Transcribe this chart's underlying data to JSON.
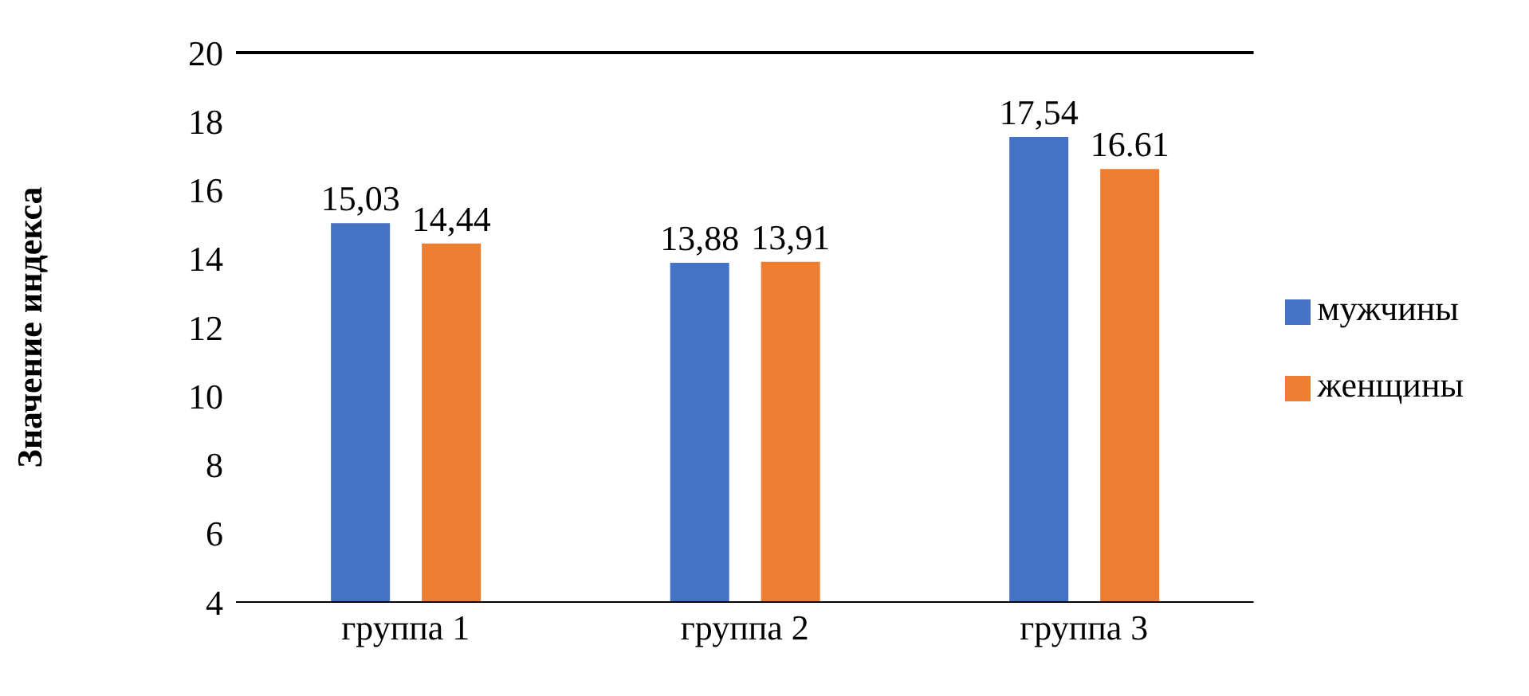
{
  "chart_data": {
    "type": "bar",
    "ylabel": "Значение индекса",
    "categories": [
      "группа 1",
      "группа 2",
      "группа 3"
    ],
    "series": [
      {
        "name": "мужчины",
        "color": "#4472c4",
        "values": [
          15.03,
          13.88,
          17.54
        ],
        "value_labels": [
          "15,03",
          "13,88",
          "17,54"
        ]
      },
      {
        "name": "женщины",
        "color": "#ed7d31",
        "values": [
          14.44,
          13.91,
          16.61
        ],
        "value_labels": [
          "14,44",
          "13,91",
          "16.61"
        ]
      }
    ],
    "ylim": [
      4,
      20
    ],
    "yticks": [
      4,
      6,
      8,
      10,
      12,
      14,
      16,
      18,
      20
    ],
    "ref_lines": [
      {
        "axis": "y",
        "value": 20,
        "color": "#000000"
      }
    ],
    "legend": "right"
  }
}
